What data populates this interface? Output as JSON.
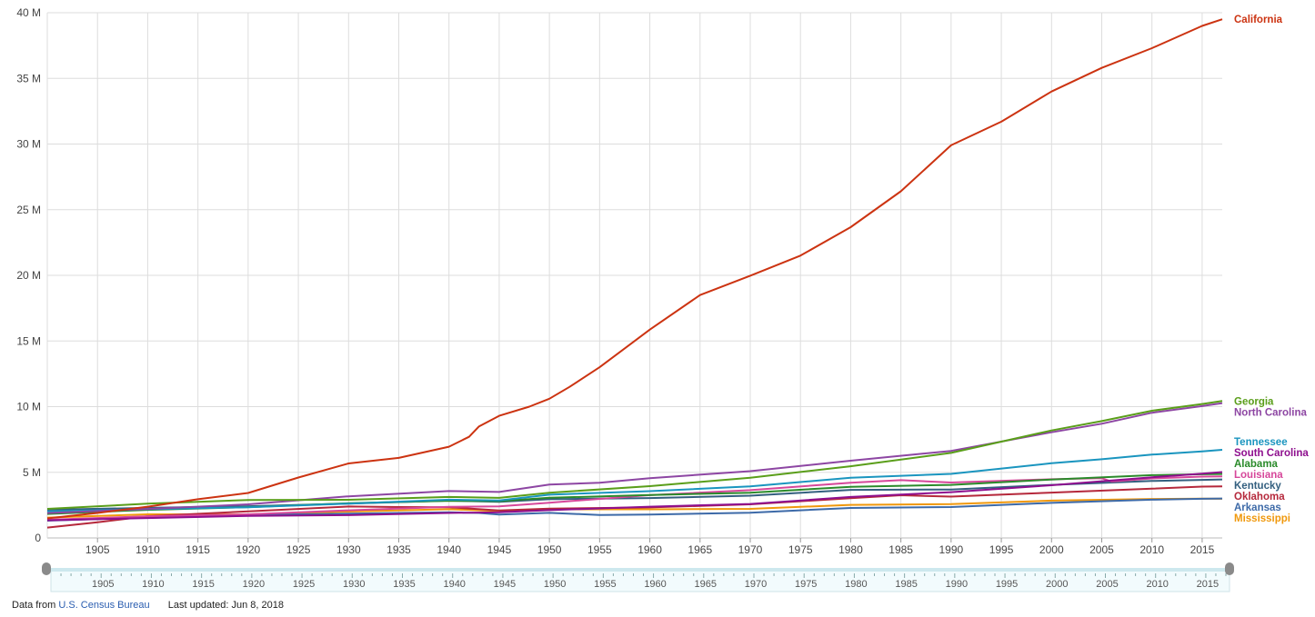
{
  "chart_data": {
    "type": "line",
    "title": "",
    "xlabel": "",
    "ylabel": "",
    "xlim": [
      1900,
      2017
    ],
    "ylim": [
      0,
      40000000
    ],
    "y_ticks": [
      {
        "value": 0,
        "label": "0"
      },
      {
        "value": 5000000,
        "label": "5 M"
      },
      {
        "value": 10000000,
        "label": "10 M"
      },
      {
        "value": 15000000,
        "label": "15 M"
      },
      {
        "value": 20000000,
        "label": "20 M"
      },
      {
        "value": 25000000,
        "label": "25 M"
      },
      {
        "value": 30000000,
        "label": "30 M"
      },
      {
        "value": 35000000,
        "label": "35 M"
      },
      {
        "value": 40000000,
        "label": "40 M"
      }
    ],
    "x_ticks": [
      "1905",
      "1910",
      "1915",
      "1920",
      "1925",
      "1930",
      "1935",
      "1940",
      "1945",
      "1950",
      "1955",
      "1960",
      "1965",
      "1970",
      "1975",
      "1980",
      "1985",
      "1990",
      "1995",
      "2000",
      "2005",
      "2010",
      "2015"
    ],
    "grid": true,
    "legend": "right, at line ends",
    "series": [
      {
        "name": "California",
        "color": "#cc3311",
        "points": [
          [
            1900,
            1485000
          ],
          [
            1905,
            1900000
          ],
          [
            1910,
            2378000
          ],
          [
            1915,
            2950000
          ],
          [
            1920,
            3427000
          ],
          [
            1925,
            4600000
          ],
          [
            1930,
            5677000
          ],
          [
            1935,
            6100000
          ],
          [
            1940,
            6950000
          ],
          [
            1942,
            7700000
          ],
          [
            1943,
            8500000
          ],
          [
            1945,
            9300000
          ],
          [
            1948,
            10000000
          ],
          [
            1950,
            10600000
          ],
          [
            1952,
            11500000
          ],
          [
            1955,
            13000000
          ],
          [
            1960,
            15870000
          ],
          [
            1965,
            18500000
          ],
          [
            1970,
            19970000
          ],
          [
            1975,
            21500000
          ],
          [
            1980,
            23670000
          ],
          [
            1985,
            26400000
          ],
          [
            1990,
            29900000
          ],
          [
            1995,
            31700000
          ],
          [
            2000,
            34000000
          ],
          [
            2005,
            35800000
          ],
          [
            2010,
            37300000
          ],
          [
            2015,
            39000000
          ],
          [
            2017,
            39500000
          ]
        ]
      },
      {
        "name": "Georgia",
        "color": "#5a9e1a",
        "points": [
          [
            1900,
            2216000
          ],
          [
            1910,
            2609000
          ],
          [
            1920,
            2896000
          ],
          [
            1930,
            2908000
          ],
          [
            1940,
            3124000
          ],
          [
            1945,
            3050000
          ],
          [
            1950,
            3445000
          ],
          [
            1960,
            3943000
          ],
          [
            1970,
            4590000
          ],
          [
            1980,
            5463000
          ],
          [
            1990,
            6478000
          ],
          [
            2000,
            8187000
          ],
          [
            2005,
            8900000
          ],
          [
            2010,
            9688000
          ],
          [
            2015,
            10200000
          ],
          [
            2017,
            10430000
          ]
        ]
      },
      {
        "name": "North Carolina",
        "color": "#8d46a3",
        "points": [
          [
            1900,
            1894000
          ],
          [
            1910,
            2206000
          ],
          [
            1920,
            2559000
          ],
          [
            1930,
            3170000
          ],
          [
            1940,
            3572000
          ],
          [
            1945,
            3500000
          ],
          [
            1950,
            4062000
          ],
          [
            1955,
            4200000
          ],
          [
            1960,
            4556000
          ],
          [
            1970,
            5084000
          ],
          [
            1980,
            5882000
          ],
          [
            1990,
            6632000
          ],
          [
            2000,
            8049000
          ],
          [
            2005,
            8700000
          ],
          [
            2010,
            9535000
          ],
          [
            2015,
            10040000
          ],
          [
            2017,
            10270000
          ]
        ]
      },
      {
        "name": "Tennessee",
        "color": "#1a95bf",
        "points": [
          [
            1900,
            2021000
          ],
          [
            1910,
            2185000
          ],
          [
            1920,
            2338000
          ],
          [
            1930,
            2617000
          ],
          [
            1940,
            2916000
          ],
          [
            1945,
            2850000
          ],
          [
            1950,
            3292000
          ],
          [
            1960,
            3567000
          ],
          [
            1970,
            3924000
          ],
          [
            1980,
            4591000
          ],
          [
            1990,
            4877000
          ],
          [
            2000,
            5689000
          ],
          [
            2005,
            5990000
          ],
          [
            2010,
            6346000
          ],
          [
            2015,
            6590000
          ],
          [
            2017,
            6710000
          ]
        ]
      },
      {
        "name": "South Carolina",
        "color": "#8e0f8e",
        "points": [
          [
            1900,
            1340000
          ],
          [
            1910,
            1515000
          ],
          [
            1920,
            1684000
          ],
          [
            1930,
            1739000
          ],
          [
            1940,
            1900000
          ],
          [
            1945,
            1950000
          ],
          [
            1950,
            2117000
          ],
          [
            1960,
            2383000
          ],
          [
            1970,
            2591000
          ],
          [
            1980,
            3122000
          ],
          [
            1990,
            3487000
          ],
          [
            2000,
            4012000
          ],
          [
            2010,
            4625000
          ],
          [
            2015,
            4900000
          ],
          [
            2017,
            5020000
          ]
        ]
      },
      {
        "name": "Alabama",
        "color": "#2a8a2a",
        "points": [
          [
            1900,
            1829000
          ],
          [
            1910,
            2138000
          ],
          [
            1920,
            2348000
          ],
          [
            1930,
            2646000
          ],
          [
            1940,
            2833000
          ],
          [
            1945,
            2800000
          ],
          [
            1950,
            3062000
          ],
          [
            1960,
            3267000
          ],
          [
            1970,
            3444000
          ],
          [
            1980,
            3894000
          ],
          [
            1990,
            4040000
          ],
          [
            2000,
            4447000
          ],
          [
            2010,
            4780000
          ],
          [
            2015,
            4850000
          ],
          [
            2017,
            4874000
          ]
        ]
      },
      {
        "name": "Louisiana",
        "color": "#d6479a",
        "points": [
          [
            1900,
            1382000
          ],
          [
            1910,
            1656000
          ],
          [
            1920,
            1799000
          ],
          [
            1930,
            2102000
          ],
          [
            1940,
            2364000
          ],
          [
            1945,
            2400000
          ],
          [
            1950,
            2684000
          ],
          [
            1960,
            3257000
          ],
          [
            1970,
            3641000
          ],
          [
            1980,
            4206000
          ],
          [
            1985,
            4400000
          ],
          [
            1990,
            4220000
          ],
          [
            2000,
            4469000
          ],
          [
            2005,
            4550000
          ],
          [
            2006,
            4300000
          ],
          [
            2010,
            4533000
          ],
          [
            2015,
            4670000
          ],
          [
            2017,
            4684000
          ]
        ]
      },
      {
        "name": "Kentucky",
        "color": "#335f7f",
        "points": [
          [
            1900,
            2147000
          ],
          [
            1910,
            2290000
          ],
          [
            1920,
            2417000
          ],
          [
            1930,
            2615000
          ],
          [
            1940,
            2846000
          ],
          [
            1945,
            2750000
          ],
          [
            1950,
            2945000
          ],
          [
            1960,
            3038000
          ],
          [
            1970,
            3219000
          ],
          [
            1980,
            3661000
          ],
          [
            1990,
            3687000
          ],
          [
            2000,
            4042000
          ],
          [
            2010,
            4339000
          ],
          [
            2015,
            4425000
          ],
          [
            2017,
            4454000
          ]
        ]
      },
      {
        "name": "Oklahoma",
        "color": "#b5283b",
        "points": [
          [
            1900,
            790000
          ],
          [
            1905,
            1200000
          ],
          [
            1910,
            1657000
          ],
          [
            1920,
            2028000
          ],
          [
            1930,
            2396000
          ],
          [
            1935,
            2350000
          ],
          [
            1940,
            2336000
          ],
          [
            1945,
            2100000
          ],
          [
            1950,
            2233000
          ],
          [
            1960,
            2328000
          ],
          [
            1970,
            2559000
          ],
          [
            1980,
            3025000
          ],
          [
            1985,
            3250000
          ],
          [
            1990,
            3146000
          ],
          [
            2000,
            3451000
          ],
          [
            2010,
            3751000
          ],
          [
            2015,
            3910000
          ],
          [
            2017,
            3930000
          ]
        ]
      },
      {
        "name": "Arkansas",
        "color": "#3d6aa8",
        "points": [
          [
            1900,
            1312000
          ],
          [
            1910,
            1574000
          ],
          [
            1920,
            1752000
          ],
          [
            1930,
            1854000
          ],
          [
            1940,
            1949000
          ],
          [
            1943,
            1900000
          ],
          [
            1945,
            1780000
          ],
          [
            1950,
            1910000
          ],
          [
            1955,
            1750000
          ],
          [
            1960,
            1786000
          ],
          [
            1970,
            1923000
          ],
          [
            1980,
            2286000
          ],
          [
            1990,
            2351000
          ],
          [
            2000,
            2673000
          ],
          [
            2010,
            2916000
          ],
          [
            2015,
            2980000
          ],
          [
            2017,
            3004000
          ]
        ]
      },
      {
        "name": "Mississippi",
        "color": "#f0980c",
        "points": [
          [
            1900,
            1551000
          ],
          [
            1910,
            1797000
          ],
          [
            1920,
            1791000
          ],
          [
            1930,
            2010000
          ],
          [
            1940,
            2184000
          ],
          [
            1945,
            2050000
          ],
          [
            1950,
            2179000
          ],
          [
            1960,
            2178000
          ],
          [
            1970,
            2217000
          ],
          [
            1980,
            2521000
          ],
          [
            1990,
            2573000
          ],
          [
            2000,
            2845000
          ],
          [
            2010,
            2968000
          ],
          [
            2015,
            2990000
          ],
          [
            2017,
            2984000
          ]
        ]
      }
    ]
  },
  "footer": {
    "source_prefix": "Data from",
    "source_link": "U.S. Census Bureau",
    "updated": "Last updated: Jun 8, 2018"
  }
}
